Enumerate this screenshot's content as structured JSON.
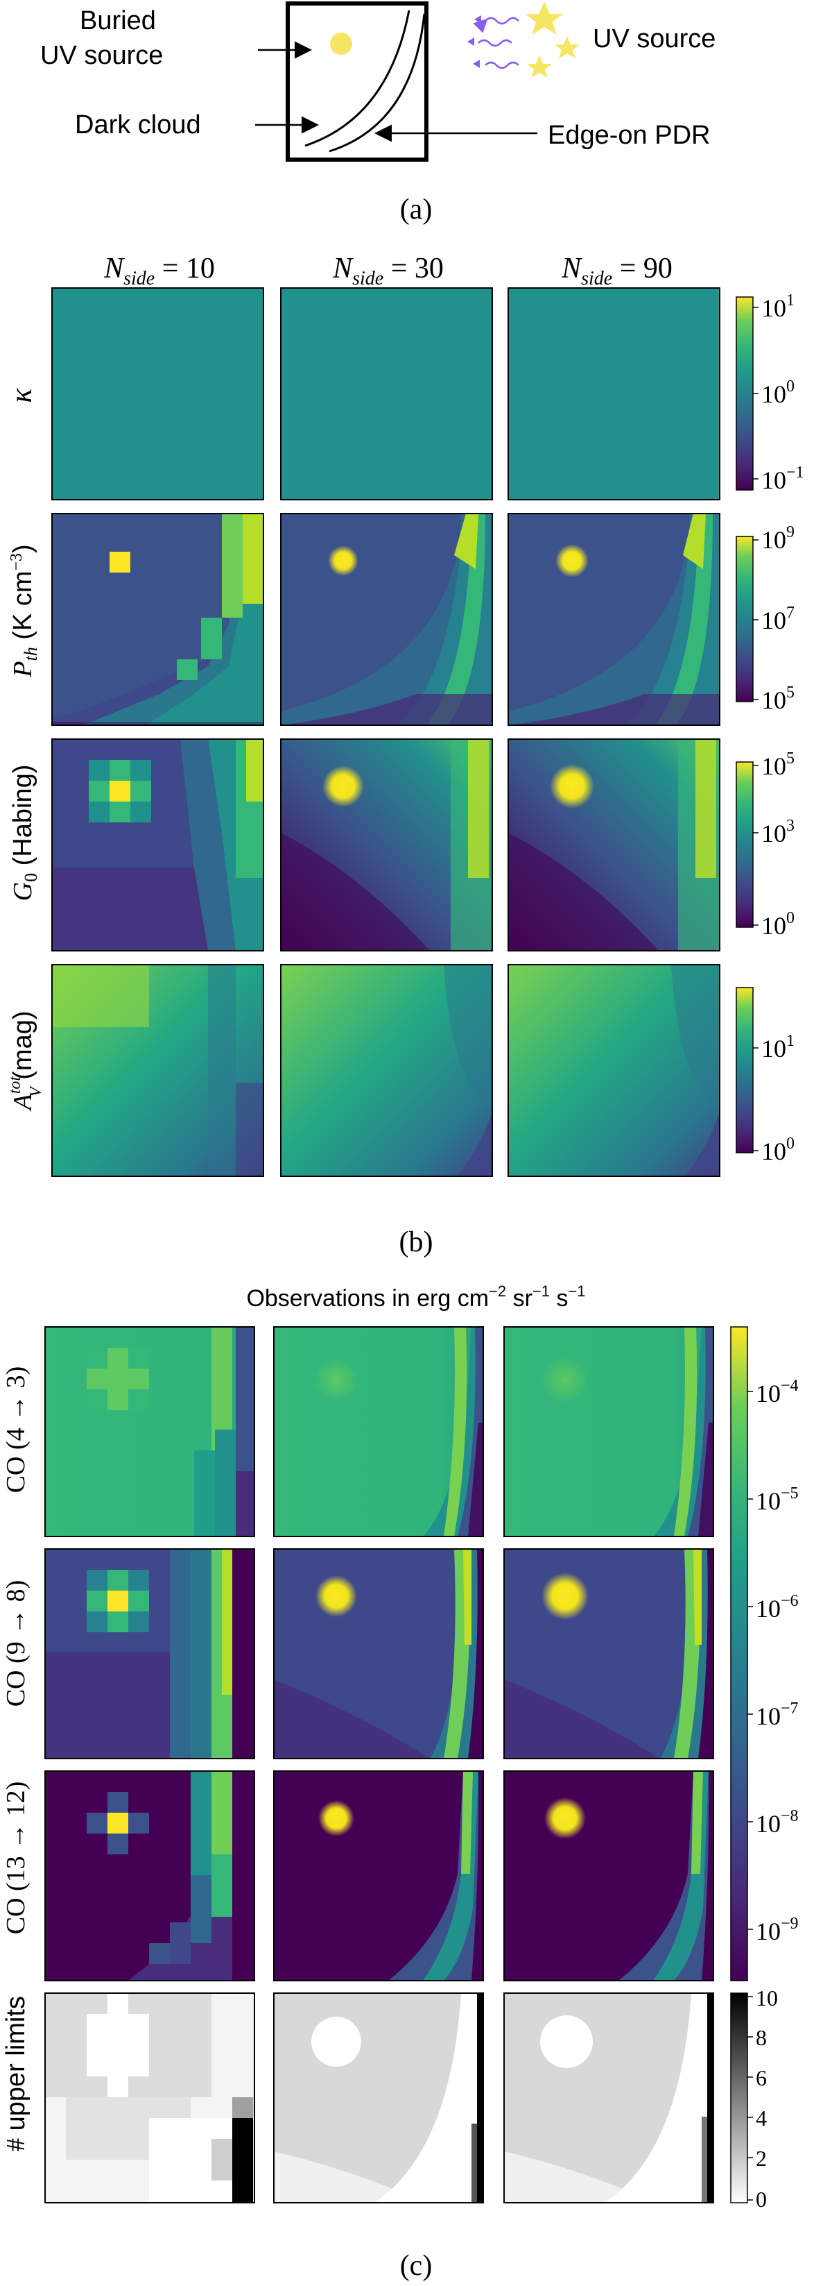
{
  "panel_a": {
    "labels": {
      "buried_line1": "Buried",
      "buried_line2": "UV source",
      "dark_cloud": "Dark cloud",
      "uv_source": "UV source",
      "edge_on_pdr": "Edge-on PDR"
    },
    "caption": "(a)"
  },
  "panel_b": {
    "caption": "(b)",
    "column_titles": [
      {
        "base": "N",
        "sub": "side",
        "rest": " = 10"
      },
      {
        "base": "N",
        "sub": "side",
        "rest": " = 30"
      },
      {
        "base": "N",
        "sub": "side",
        "rest": " = 90"
      }
    ],
    "row_labels": {
      "kappa": "κ",
      "pth_sym": "P",
      "pth_sub": "th",
      "pth_unit": " (K cm",
      "pth_exp": "−3",
      "pth_close": ")",
      "g0_sym": "G",
      "g0_sub": "0",
      "g0_unit": " (Habing)",
      "av_sym": "A",
      "av_sup": "tot",
      "av_sub": "V",
      "av_unit": " (mag)"
    },
    "colorbars": [
      {
        "row": "kappa",
        "ticks": [
          {
            "base": "10",
            "exp": "1"
          },
          {
            "base": "10",
            "exp": "0"
          },
          {
            "base": "10",
            "exp": "−1"
          }
        ]
      },
      {
        "row": "pth",
        "ticks": [
          {
            "base": "10",
            "exp": "9"
          },
          {
            "base": "10",
            "exp": "7"
          },
          {
            "base": "10",
            "exp": "5"
          }
        ]
      },
      {
        "row": "g0",
        "ticks": [
          {
            "base": "10",
            "exp": "5"
          },
          {
            "base": "10",
            "exp": "3"
          },
          {
            "base": "10",
            "exp": "0"
          }
        ]
      },
      {
        "row": "av",
        "ticks": [
          {
            "base": "10",
            "exp": "1"
          },
          {
            "base": "10",
            "exp": "0"
          }
        ]
      }
    ]
  },
  "panel_c": {
    "caption": "(c)",
    "title_main": "Observations in erg cm",
    "title_exp1": "−2",
    "title_mid": " sr",
    "title_exp2": "−1",
    "title_mid2": " s",
    "title_exp3": "−1",
    "row_labels": {
      "co43": "CO (4 → 3)",
      "co98": "CO (9 → 8)",
      "co1312": "CO (13 → 12)",
      "upper_hash": "#",
      "upper_text": " upper limits"
    },
    "colorbar_ticks": [
      {
        "base": "10",
        "exp": "−4"
      },
      {
        "base": "10",
        "exp": "−5"
      },
      {
        "base": "10",
        "exp": "−6"
      },
      {
        "base": "10",
        "exp": "−7"
      },
      {
        "base": "10",
        "exp": "−8"
      },
      {
        "base": "10",
        "exp": "−9"
      }
    ],
    "upper_ticks": [
      "10",
      "8",
      "6",
      "4",
      "2",
      "0"
    ]
  },
  "colors": {
    "viridis_dark": "#440154",
    "viridis_mid": "#21918c",
    "viridis_yellow": "#fde725",
    "star_yellow": "#f5e663",
    "arrow_purple": "#8a5cf0"
  }
}
